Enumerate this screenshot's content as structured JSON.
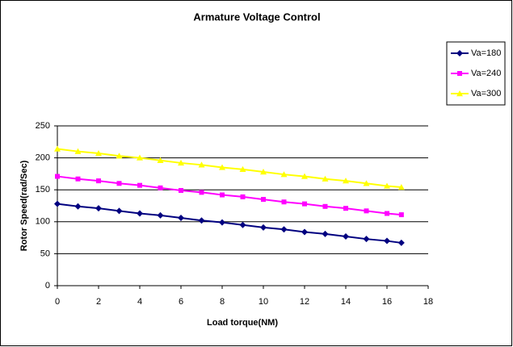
{
  "chart_data": {
    "type": "line",
    "title": "Armature Voltage Control",
    "x_label": "Load torque(NM)",
    "y_label": "Rotor Speed(rad/Sec)",
    "x": [
      0,
      1,
      2,
      3,
      4,
      5,
      6,
      7,
      8,
      9,
      10,
      11,
      12,
      13,
      14,
      15,
      16,
      16.7
    ],
    "series": [
      {
        "name": "Va=180",
        "color": "#000080",
        "marker": "diamond",
        "values": [
          128,
          124,
          121,
          117,
          113,
          110,
          106,
          102,
          99,
          95,
          91,
          88,
          84,
          81,
          77,
          73,
          70,
          67
        ]
      },
      {
        "name": "Va=240",
        "color": "#ff00ff",
        "marker": "square",
        "values": [
          171,
          167,
          164,
          160,
          157,
          153,
          149,
          146,
          142,
          139,
          135,
          131,
          128,
          124,
          121,
          117,
          113,
          111
        ]
      },
      {
        "name": "Va=300",
        "color": "#ffff00",
        "marker": "triangle",
        "values": [
          214,
          210,
          207,
          203,
          200,
          196,
          192,
          189,
          185,
          182,
          178,
          174,
          171,
          167,
          164,
          160,
          156,
          154
        ]
      }
    ],
    "xlim": [
      0,
      18
    ],
    "xticks": [
      0,
      2,
      4,
      6,
      8,
      10,
      12,
      14,
      16,
      18
    ],
    "ylim": [
      0,
      250
    ],
    "yticks": [
      0,
      50,
      100,
      150,
      200,
      250
    ],
    "grid": true,
    "legend": "right"
  }
}
